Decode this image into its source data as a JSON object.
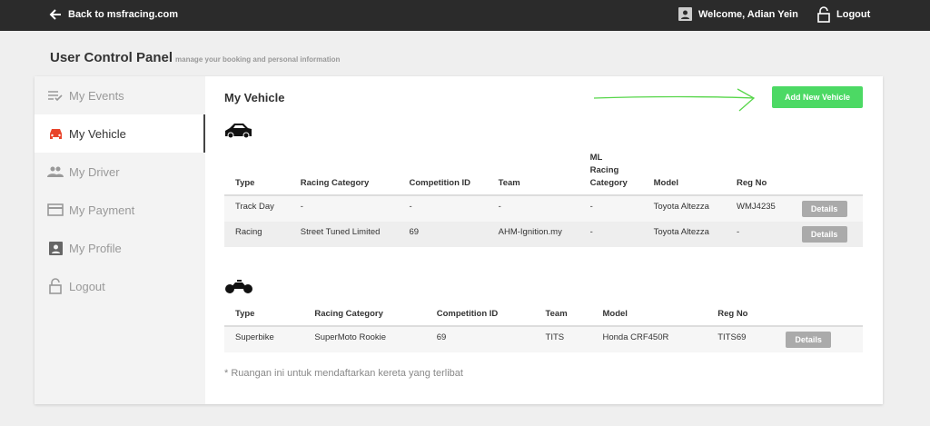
{
  "topbar": {
    "back_label": "Back to msfracing.com",
    "welcome": "Welcome, Adian Yein",
    "logout": "Logout"
  },
  "header": {
    "title": "User Control Panel",
    "subtitle": "manage your booking and personal information"
  },
  "sidebar": {
    "items": [
      {
        "label": "My Events",
        "icon": "event-list-icon"
      },
      {
        "label": "My Vehicle",
        "icon": "car-icon",
        "active": true
      },
      {
        "label": "My Driver",
        "icon": "people-icon"
      },
      {
        "label": "My Payment",
        "icon": "credit-card-icon"
      },
      {
        "label": "My Profile",
        "icon": "profile-icon"
      },
      {
        "label": "Logout",
        "icon": "lock-icon"
      }
    ]
  },
  "main": {
    "title": "My Vehicle",
    "add_button": "Add New Vehicle",
    "cars": {
      "headers": [
        "Type",
        "Racing Category",
        "Competition ID",
        "Team",
        "ML Racing Category",
        "Model",
        "Reg No"
      ],
      "rows": [
        [
          "Track Day",
          "-",
          "-",
          "-",
          "-",
          "Toyota Altezza",
          "WMJ4235"
        ],
        [
          "Racing",
          "Street Tuned Limited",
          "69",
          "AHM-Ignition.my",
          "-",
          "Toyota Altezza",
          "-"
        ]
      ]
    },
    "bikes": {
      "headers": [
        "Type",
        "Racing Category",
        "Competition ID",
        "Team",
        "Model",
        "Reg No"
      ],
      "rows": [
        [
          "Superbike",
          "SuperMoto Rookie",
          "69",
          "TITS",
          "Honda CRF450R",
          "TITS69"
        ]
      ]
    },
    "details_label": "Details",
    "note": "* Ruangan ini untuk mendaftarkan kereta yang terlibat"
  },
  "colors": {
    "accent": "#4cd964",
    "active_icon": "#e8452c",
    "topbar": "#2b2b2b",
    "annotation_arrow": "#57d64a"
  }
}
